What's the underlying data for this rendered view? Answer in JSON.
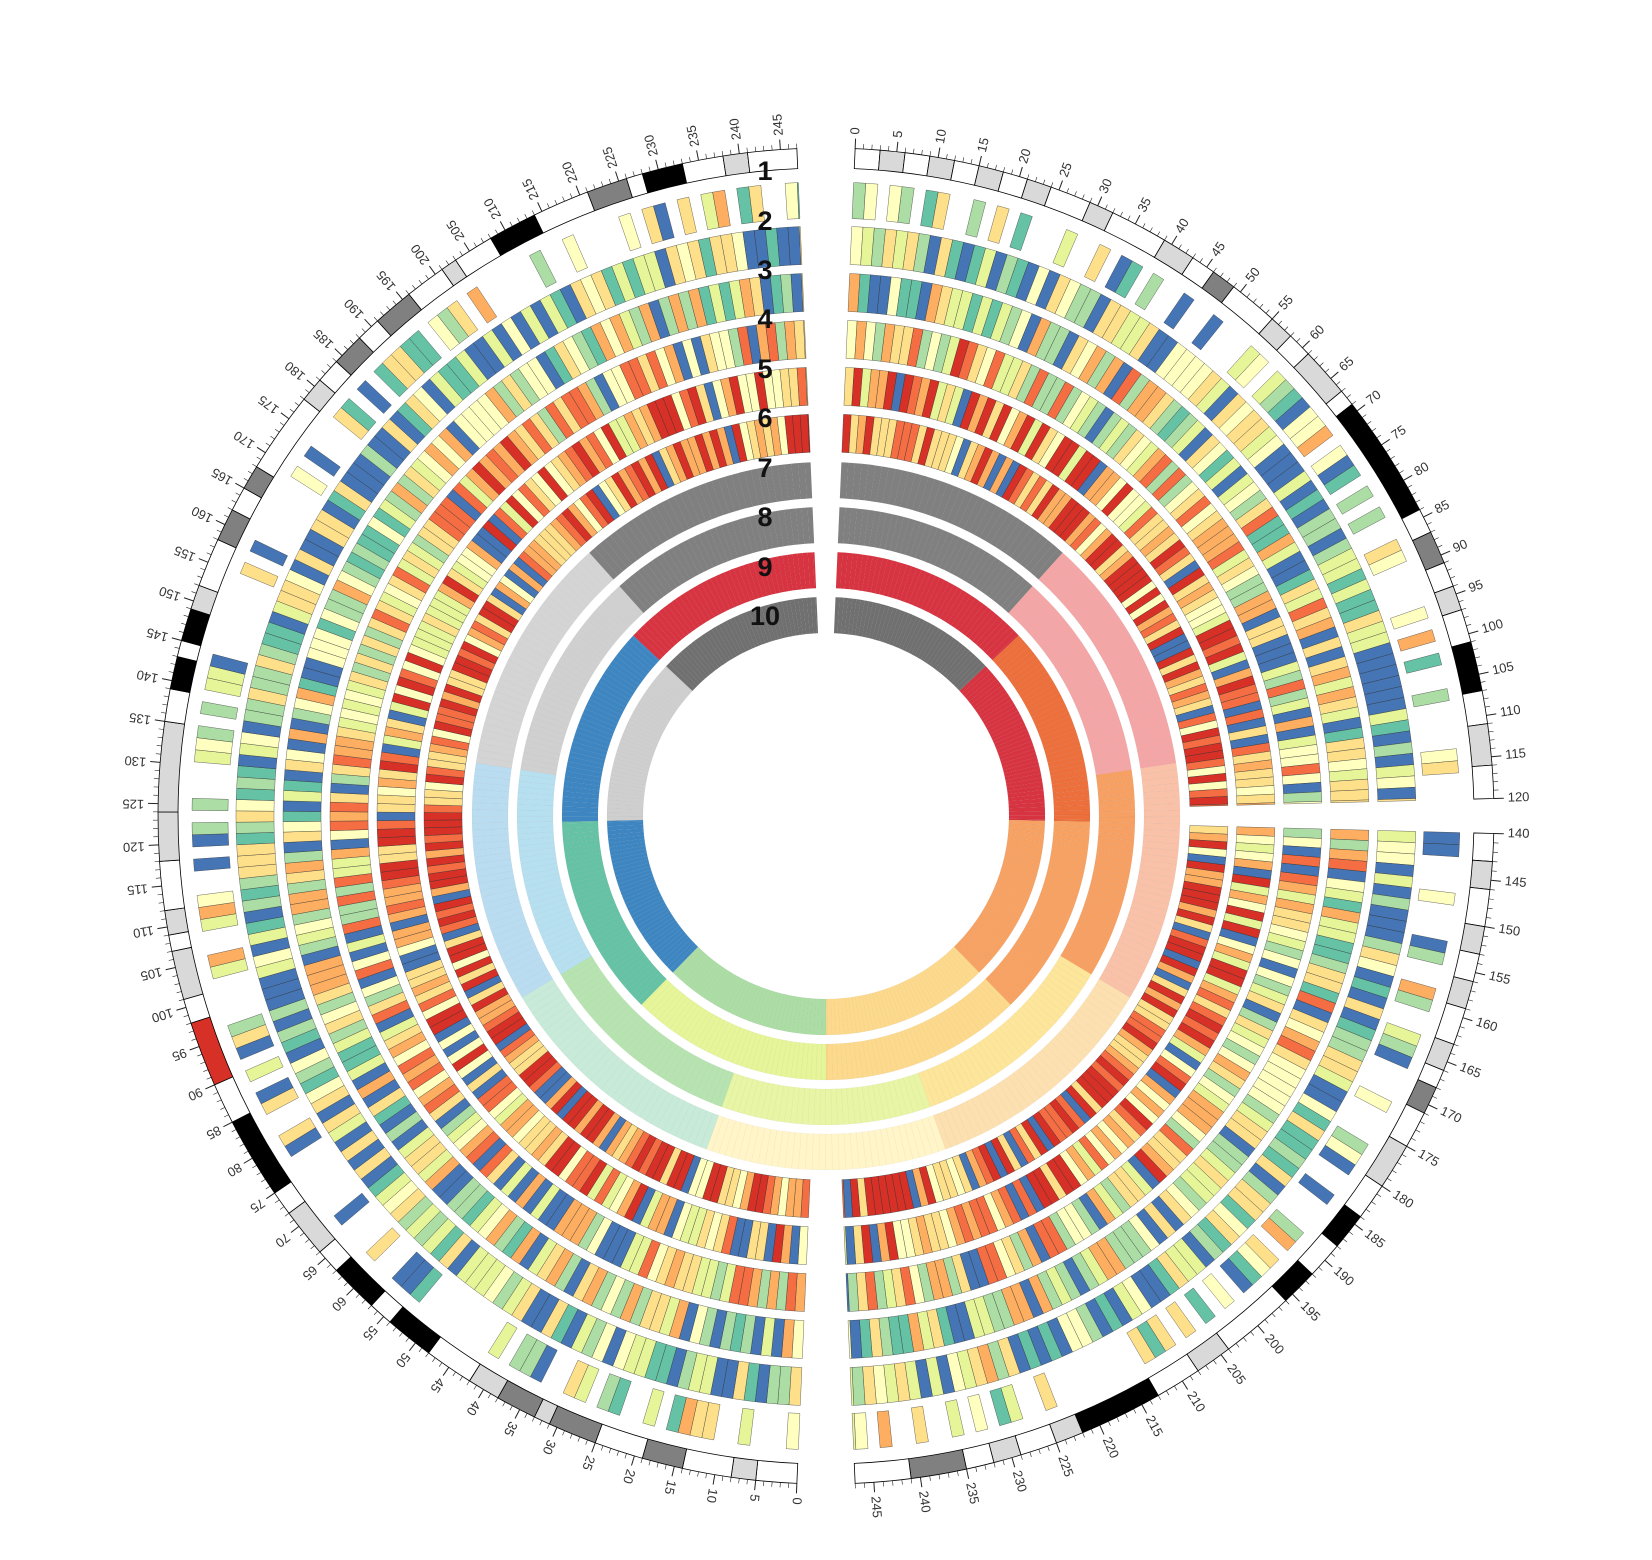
{
  "segments": [
    {
      "id": "top-right",
      "tick_start": 0,
      "tick_end": 120,
      "cytobands": [
        {
          "start": 0,
          "end": 3,
          "color": "#ffffff"
        },
        {
          "start": 3,
          "end": 6,
          "color": "#d9d9d9"
        },
        {
          "start": 6,
          "end": 9,
          "color": "#ffffff"
        },
        {
          "start": 9,
          "end": 12,
          "color": "#d9d9d9"
        },
        {
          "start": 12,
          "end": 15,
          "color": "#ffffff"
        },
        {
          "start": 15,
          "end": 18,
          "color": "#d9d9d9"
        },
        {
          "start": 18,
          "end": 21,
          "color": "#ffffff"
        },
        {
          "start": 21,
          "end": 24,
          "color": "#d9d9d9"
        },
        {
          "start": 24,
          "end": 29,
          "color": "#ffffff"
        },
        {
          "start": 29,
          "end": 32,
          "color": "#d9d9d9"
        },
        {
          "start": 32,
          "end": 39,
          "color": "#ffffff"
        },
        {
          "start": 39,
          "end": 43,
          "color": "#d9d9d9"
        },
        {
          "start": 43,
          "end": 46,
          "color": "#ffffff"
        },
        {
          "start": 46,
          "end": 49,
          "color": "#808080"
        },
        {
          "start": 49,
          "end": 55,
          "color": "#ffffff"
        },
        {
          "start": 55,
          "end": 58,
          "color": "#d9d9d9"
        },
        {
          "start": 58,
          "end": 61,
          "color": "#ffffff"
        },
        {
          "start": 61,
          "end": 67,
          "color": "#d9d9d9"
        },
        {
          "start": 67,
          "end": 69,
          "color": "#ffffff"
        },
        {
          "start": 69,
          "end": 84,
          "color": "#000000"
        },
        {
          "start": 84,
          "end": 87,
          "color": "#ffffff"
        },
        {
          "start": 87,
          "end": 91,
          "color": "#808080"
        },
        {
          "start": 91,
          "end": 94,
          "color": "#ffffff"
        },
        {
          "start": 94,
          "end": 97,
          "color": "#d9d9d9"
        },
        {
          "start": 97,
          "end": 101,
          "color": "#ffffff"
        },
        {
          "start": 101,
          "end": 107,
          "color": "#000000"
        },
        {
          "start": 107,
          "end": 111,
          "color": "#ffffff"
        },
        {
          "start": 111,
          "end": 116,
          "color": "#d9d9d9"
        },
        {
          "start": 116,
          "end": 120,
          "color": "#ffffff"
        }
      ]
    },
    {
      "id": "bottom-right",
      "tick_start": 140,
      "tick_end": 247,
      "cytobands": [
        {
          "start": 140,
          "end": 143,
          "color": "#ffffff"
        },
        {
          "start": 143,
          "end": 146,
          "color": "#d9d9d9"
        },
        {
          "start": 146,
          "end": 150,
          "color": "#ffffff"
        },
        {
          "start": 150,
          "end": 153,
          "color": "#d9d9d9"
        },
        {
          "start": 153,
          "end": 156,
          "color": "#ffffff"
        },
        {
          "start": 156,
          "end": 159,
          "color": "#d9d9d9"
        },
        {
          "start": 159,
          "end": 163,
          "color": "#ffffff"
        },
        {
          "start": 163,
          "end": 166,
          "color": "#d9d9d9"
        },
        {
          "start": 166,
          "end": 168,
          "color": "#ffffff"
        },
        {
          "start": 168,
          "end": 171,
          "color": "#808080"
        },
        {
          "start": 171,
          "end": 175,
          "color": "#ffffff"
        },
        {
          "start": 175,
          "end": 180,
          "color": "#d9d9d9"
        },
        {
          "start": 180,
          "end": 184,
          "color": "#ffffff"
        },
        {
          "start": 184,
          "end": 188,
          "color": "#000000"
        },
        {
          "start": 188,
          "end": 192,
          "color": "#ffffff"
        },
        {
          "start": 192,
          "end": 196,
          "color": "#000000"
        },
        {
          "start": 196,
          "end": 204,
          "color": "#ffffff"
        },
        {
          "start": 204,
          "end": 208,
          "color": "#d9d9d9"
        },
        {
          "start": 208,
          "end": 213,
          "color": "#ffffff"
        },
        {
          "start": 213,
          "end": 222,
          "color": "#000000"
        },
        {
          "start": 222,
          "end": 225,
          "color": "#d9d9d9"
        },
        {
          "start": 225,
          "end": 229,
          "color": "#ffffff"
        },
        {
          "start": 229,
          "end": 232,
          "color": "#d9d9d9"
        },
        {
          "start": 232,
          "end": 235,
          "color": "#ffffff"
        },
        {
          "start": 235,
          "end": 241,
          "color": "#808080"
        },
        {
          "start": 241,
          "end": 247,
          "color": "#ffffff"
        }
      ]
    },
    {
      "id": "left",
      "tick_start": 0,
      "tick_end": 247,
      "cytobands": [
        {
          "start": 0,
          "end": 5,
          "color": "#ffffff"
        },
        {
          "start": 5,
          "end": 8,
          "color": "#d9d9d9"
        },
        {
          "start": 8,
          "end": 14,
          "color": "#ffffff"
        },
        {
          "start": 14,
          "end": 19,
          "color": "#808080"
        },
        {
          "start": 19,
          "end": 25,
          "color": "#ffffff"
        },
        {
          "start": 25,
          "end": 31,
          "color": "#808080"
        },
        {
          "start": 31,
          "end": 33,
          "color": "#d9d9d9"
        },
        {
          "start": 33,
          "end": 38,
          "color": "#808080"
        },
        {
          "start": 38,
          "end": 42,
          "color": "#d9d9d9"
        },
        {
          "start": 42,
          "end": 48,
          "color": "#ffffff"
        },
        {
          "start": 48,
          "end": 54,
          "color": "#000000"
        },
        {
          "start": 54,
          "end": 57,
          "color": "#ffffff"
        },
        {
          "start": 57,
          "end": 63,
          "color": "#000000"
        },
        {
          "start": 63,
          "end": 66,
          "color": "#ffffff"
        },
        {
          "start": 66,
          "end": 72,
          "color": "#d9d9d9"
        },
        {
          "start": 72,
          "end": 75,
          "color": "#ffffff"
        },
        {
          "start": 75,
          "end": 85,
          "color": "#000000"
        },
        {
          "start": 85,
          "end": 90,
          "color": "#ffffff"
        },
        {
          "start": 90,
          "end": 98,
          "color": "#d73027"
        },
        {
          "start": 98,
          "end": 101,
          "color": "#ffffff"
        },
        {
          "start": 101,
          "end": 107,
          "color": "#d9d9d9"
        },
        {
          "start": 107,
          "end": 109,
          "color": "#ffffff"
        },
        {
          "start": 109,
          "end": 112,
          "color": "#d9d9d9"
        },
        {
          "start": 112,
          "end": 118,
          "color": "#ffffff"
        },
        {
          "start": 118,
          "end": 124,
          "color": "#d9d9d9"
        },
        {
          "start": 124,
          "end": 135,
          "color": "#d9d9d9"
        },
        {
          "start": 135,
          "end": 139,
          "color": "#ffffff"
        },
        {
          "start": 139,
          "end": 143,
          "color": "#000000"
        },
        {
          "start": 143,
          "end": 145,
          "color": "#ffffff"
        },
        {
          "start": 145,
          "end": 149,
          "color": "#000000"
        },
        {
          "start": 149,
          "end": 152,
          "color": "#d9d9d9"
        },
        {
          "start": 152,
          "end": 158,
          "color": "#ffffff"
        },
        {
          "start": 158,
          "end": 162,
          "color": "#808080"
        },
        {
          "start": 162,
          "end": 165,
          "color": "#ffffff"
        },
        {
          "start": 165,
          "end": 168,
          "color": "#808080"
        },
        {
          "start": 168,
          "end": 178,
          "color": "#ffffff"
        },
        {
          "start": 178,
          "end": 181,
          "color": "#d9d9d9"
        },
        {
          "start": 181,
          "end": 184,
          "color": "#ffffff"
        },
        {
          "start": 184,
          "end": 188,
          "color": "#808080"
        },
        {
          "start": 188,
          "end": 191,
          "color": "#ffffff"
        },
        {
          "start": 191,
          "end": 196,
          "color": "#808080"
        },
        {
          "start": 196,
          "end": 201,
          "color": "#ffffff"
        },
        {
          "start": 201,
          "end": 203,
          "color": "#d9d9d9"
        },
        {
          "start": 203,
          "end": 208,
          "color": "#ffffff"
        },
        {
          "start": 208,
          "end": 214,
          "color": "#000000"
        },
        {
          "start": 214,
          "end": 221,
          "color": "#ffffff"
        },
        {
          "start": 221,
          "end": 226,
          "color": "#808080"
        },
        {
          "start": 226,
          "end": 228,
          "color": "#ffffff"
        },
        {
          "start": 228,
          "end": 233,
          "color": "#000000"
        },
        {
          "start": 233,
          "end": 238,
          "color": "#ffffff"
        },
        {
          "start": 238,
          "end": 241,
          "color": "#d9d9d9"
        },
        {
          "start": 241,
          "end": 247,
          "color": "#ffffff"
        }
      ]
    }
  ],
  "ring_labels": [
    "1",
    "2",
    "3",
    "4",
    "5",
    "6",
    "7",
    "8",
    "9",
    "10"
  ],
  "tick_label_step": 5,
  "heat_palette": [
    "#4575b4",
    "#66c2a5",
    "#abdda4",
    "#e6f598",
    "#ffffbf",
    "#fee08b",
    "#fdae61",
    "#f46d43",
    "#d73027"
  ],
  "summary_rings": {
    "ring7": [
      {
        "color": "#808080",
        "label": "gray"
      },
      {
        "color": "#f4a6a6",
        "label": "pink"
      },
      {
        "color": "#f8c1a8",
        "label": "salmon"
      },
      {
        "color": "#fde0b0",
        "label": "peach"
      },
      {
        "color": "#fff5c8",
        "label": "cream"
      },
      {
        "color": "#c8ead8",
        "label": "mint"
      },
      {
        "color": "#b9dcf0",
        "label": "sky"
      },
      {
        "color": "#d4d4d4",
        "label": "silver"
      },
      {
        "color": "#808080",
        "label": "gray2"
      }
    ],
    "ring8": [
      {
        "color": "#808080",
        "label": "gray"
      },
      {
        "color": "#f4a6a6",
        "label": "pink"
      },
      {
        "color": "#f7a063",
        "label": "orange"
      },
      {
        "color": "#fde59a",
        "label": "yellow"
      },
      {
        "color": "#e8f5a4",
        "label": "lime"
      },
      {
        "color": "#b6e3b0",
        "label": "green"
      },
      {
        "color": "#b6dff0",
        "label": "lightblue"
      },
      {
        "color": "#d0d0d0",
        "label": "silver"
      },
      {
        "color": "#808080",
        "label": "gray2"
      }
    ],
    "ring9": [
      {
        "color": "#d73340",
        "label": "red"
      },
      {
        "color": "#ec6f3c",
        "label": "orange"
      },
      {
        "color": "#f7a263",
        "label": "lightorange"
      },
      {
        "color": "#fdd98c",
        "label": "yellow"
      },
      {
        "color": "#e6f598",
        "label": "lime"
      },
      {
        "color": "#66c2a5",
        "label": "teal"
      },
      {
        "color": "#3e86c2",
        "label": "blue"
      },
      {
        "color": "#d73340",
        "label": "red2"
      }
    ],
    "ring10": [
      {
        "color": "#707070",
        "label": "darkgray"
      },
      {
        "color": "#d73340",
        "label": "red"
      },
      {
        "color": "#f7a263",
        "label": "orange"
      },
      {
        "color": "#fdd98c",
        "label": "yellow"
      },
      {
        "color": "#abdda4",
        "label": "green"
      },
      {
        "color": "#3e86c2",
        "label": "blue"
      },
      {
        "color": "#cfcfcf",
        "label": "silver"
      },
      {
        "color": "#707070",
        "label": "darkgray2"
      }
    ]
  }
}
